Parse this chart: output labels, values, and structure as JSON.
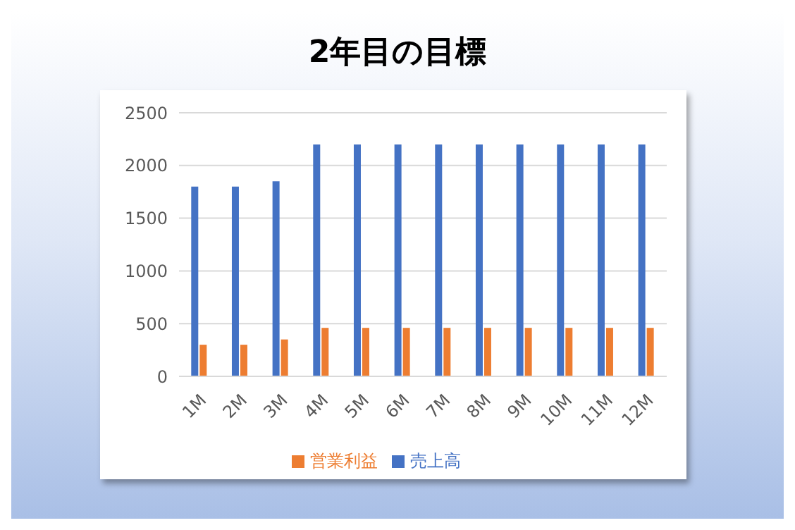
{
  "chart_data": {
    "type": "bar",
    "title": "2年目の目標",
    "categories": [
      "1M",
      "2M",
      "3M",
      "4M",
      "5M",
      "6M",
      "7M",
      "8M",
      "9M",
      "10M",
      "11M",
      "12M"
    ],
    "series": [
      {
        "name": "売上高",
        "color": "#4472c4",
        "values": [
          1800,
          1800,
          1850,
          2200,
          2200,
          2200,
          2200,
          2200,
          2200,
          2200,
          2200,
          2200
        ]
      },
      {
        "name": "営業利益",
        "color": "#ed7d31",
        "values": [
          300,
          300,
          350,
          460,
          460,
          460,
          460,
          460,
          460,
          460,
          460,
          460
        ]
      }
    ],
    "ylim": [
      0,
      2500
    ],
    "yticks": [
      0,
      500,
      1000,
      1500,
      2000,
      2500
    ],
    "grid": "y",
    "legend": "bottom"
  }
}
